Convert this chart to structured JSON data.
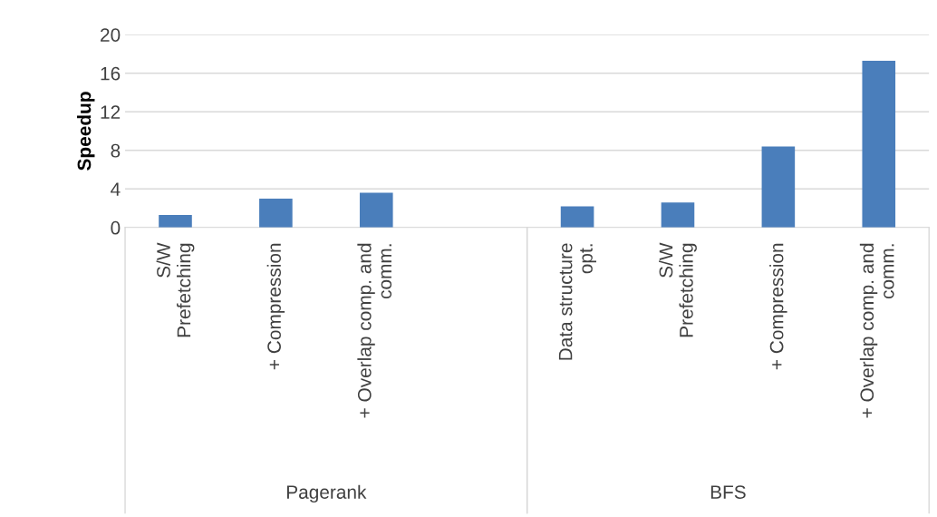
{
  "chart_data": {
    "type": "bar",
    "ylabel": "Speedup",
    "categories": [
      "S/W\nPrefetching",
      "+ Compression",
      "+ Overlap comp. and\ncomm.",
      null,
      "Data structure\nopt.",
      "S/W\nPrefetching",
      "+ Compression",
      "+ Overlap comp. and\ncomm."
    ],
    "values": [
      1.3,
      3.0,
      3.6,
      null,
      2.2,
      2.6,
      8.4,
      17.3
    ],
    "color": "#4a7ebb",
    "ylim": [
      0,
      20
    ],
    "yticks": [
      0,
      4,
      8,
      12,
      16,
      20
    ],
    "grid": "y",
    "annotations": [
      "Pagerank",
      "BFS"
    ]
  }
}
